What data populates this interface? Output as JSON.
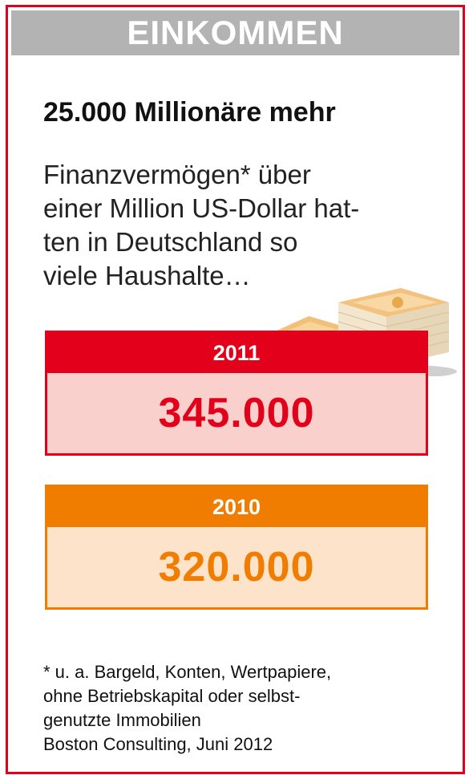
{
  "header": {
    "title": "EINKOMMEN"
  },
  "headline": "25.000 Millionäre mehr",
  "intro": {
    "lines": [
      "Finanzvermögen* über",
      "einer Million US-Dollar hat-",
      "ten in Deutschland so",
      "viele Haushalte…"
    ]
  },
  "chart_data": {
    "type": "table",
    "title": "25.000 Millionäre mehr",
    "categories": [
      "2011",
      "2010"
    ],
    "values": [
      345000,
      320000
    ],
    "value_labels": [
      "345.000",
      "320.000"
    ],
    "colors": {
      "2011": {
        "accent": "#e2001a",
        "fill": "#f9d0cc",
        "text": "#e2001a"
      },
      "2010": {
        "accent": "#f07d00",
        "fill": "#fde3c9",
        "text": "#f07d00"
      }
    }
  },
  "footnote": {
    "lines": [
      "* u. a. Bargeld, Konten, Wertpapiere,",
      "ohne Betriebskapital oder selbst-",
      "genutzte Immobilien",
      "Boston Consulting, Juni 2012"
    ]
  },
  "colors": {
    "frame": "#e2001a",
    "header_bg": "#b3b3b3"
  },
  "illustration": "euro-banknotes-stack-icon"
}
